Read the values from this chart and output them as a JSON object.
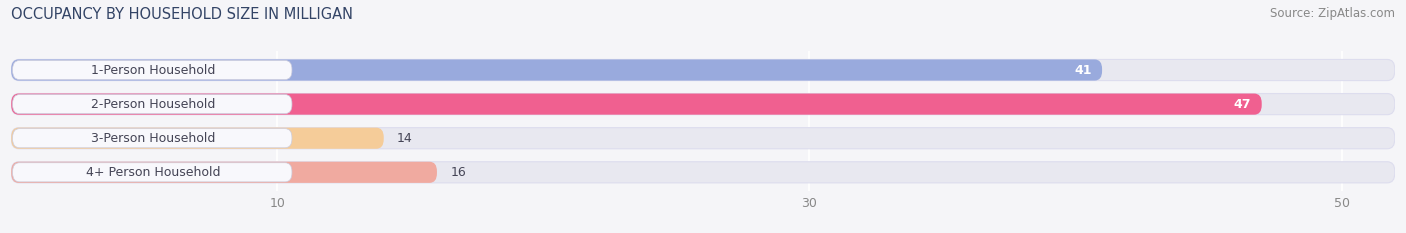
{
  "title": "OCCUPANCY BY HOUSEHOLD SIZE IN MILLIGAN",
  "source": "Source: ZipAtlas.com",
  "categories": [
    "1-Person Household",
    "2-Person Household",
    "3-Person Household",
    "4+ Person Household"
  ],
  "values": [
    41,
    47,
    14,
    16
  ],
  "bar_colors": [
    "#99aadd",
    "#f06090",
    "#f5cc99",
    "#f0aaa0"
  ],
  "label_pill_colors": [
    "#aabbee",
    "#f07aaa",
    "#f5cc99",
    "#f0b0a8"
  ],
  "xlim": [
    0,
    52
  ],
  "xticks": [
    10,
    30,
    50
  ],
  "title_fontsize": 10.5,
  "source_fontsize": 8.5,
  "tick_fontsize": 9,
  "bar_label_fontsize": 9,
  "category_fontsize": 9,
  "background_color": "#f5f5f8",
  "bar_bg_color": "#e8e8f0",
  "label_bg_color": "#f8f8fc",
  "text_color": "#444455",
  "title_color": "#334466"
}
